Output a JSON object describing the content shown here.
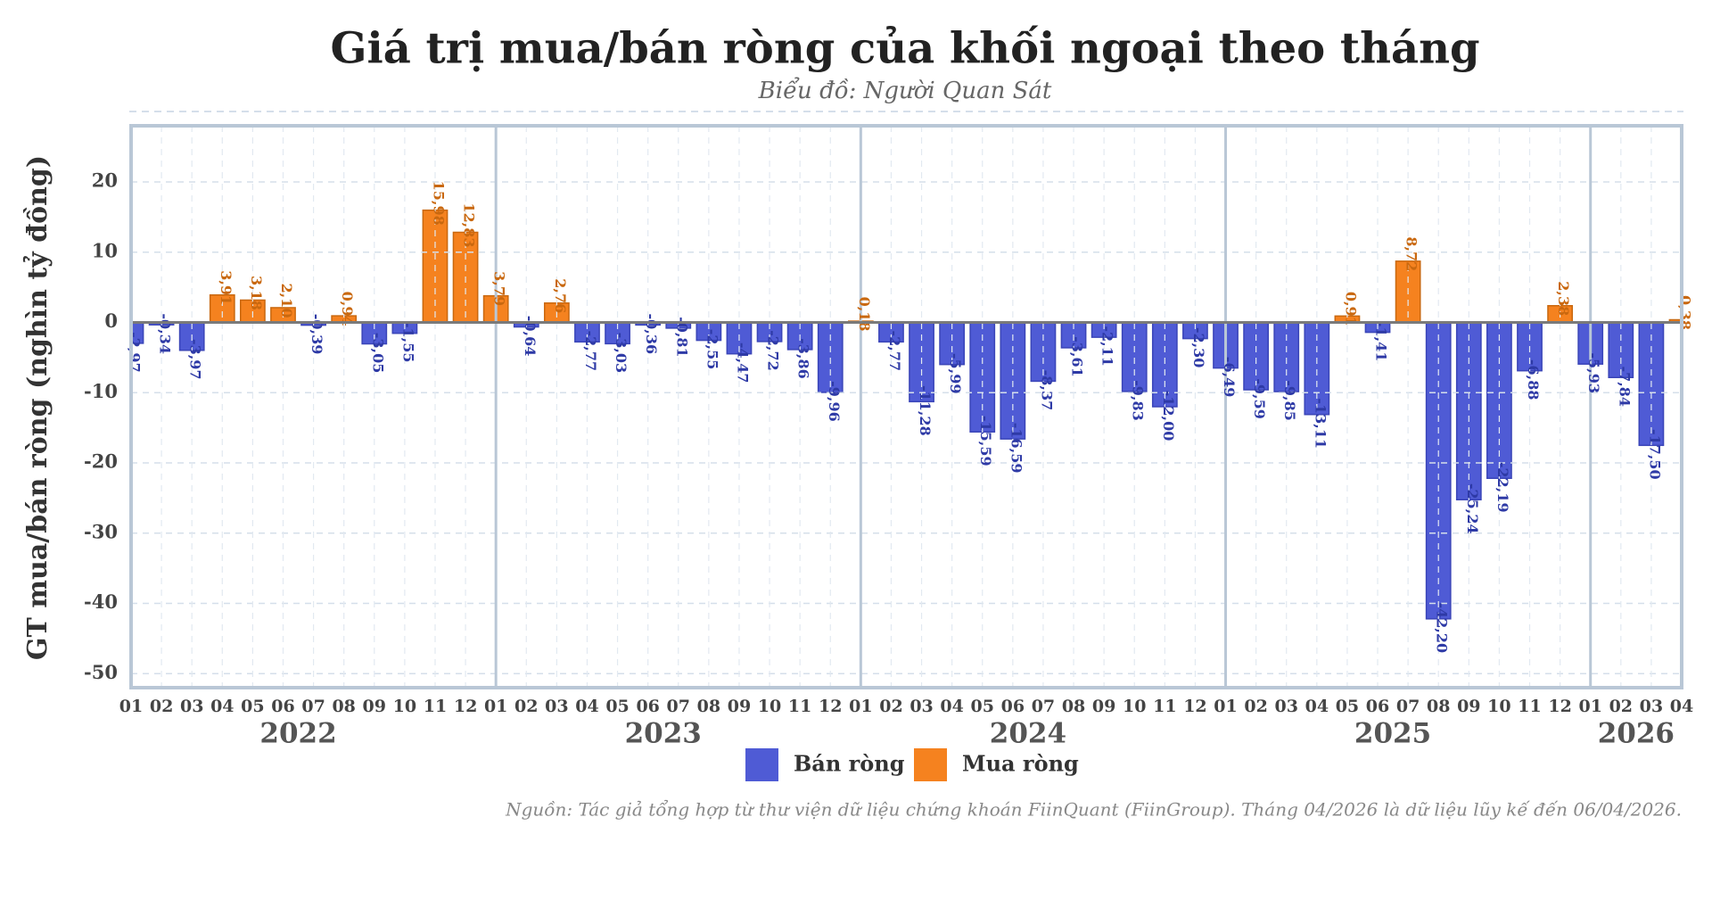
{
  "chart_data": {
    "type": "bar",
    "title": "Giá trị mua/bán ròng của khối ngoại theo tháng",
    "subtitle": "Biểu đồ: Người Quan Sát",
    "y_label": "GT mua/bán ròng (nghìn tỷ đồng)",
    "source": "Nguồn: Tác giả tổng hợp từ thư viện dữ liệu chứng khoán FiinQuant (FiinGroup). Tháng 04/2026 là dữ liệu lũy kế đến 06/04/2026.",
    "categories": [
      "01",
      "02",
      "03",
      "04",
      "05",
      "06",
      "07",
      "08",
      "09",
      "10",
      "11",
      "12",
      "01",
      "02",
      "03",
      "04",
      "05",
      "06",
      "07",
      "08",
      "09",
      "10",
      "11",
      "12",
      "01",
      "02",
      "03",
      "04",
      "05",
      "06",
      "07",
      "08",
      "09",
      "10",
      "11",
      "12",
      "01",
      "02",
      "03",
      "04",
      "05",
      "06",
      "07",
      "08",
      "09",
      "10",
      "11",
      "12",
      "01",
      "02",
      "03",
      "04"
    ],
    "years": [
      "2022",
      "2023",
      "2024",
      "2025",
      "2026"
    ],
    "series": [
      {
        "name": "Bán ròng",
        "color": "#4f5bd5",
        "values": [
          -2.97,
          -0.34,
          -3.97,
          null,
          null,
          null,
          -0.39,
          null,
          -3.05,
          -1.55,
          null,
          null,
          null,
          -0.64,
          null,
          -2.77,
          -3.03,
          -0.36,
          -0.81,
          -2.55,
          -4.47,
          -2.72,
          -3.86,
          -9.96,
          null,
          -2.77,
          -11.28,
          -5.99,
          -15.59,
          -16.59,
          -8.37,
          -3.61,
          -2.11,
          -9.83,
          -12,
          -2.3,
          -6.49,
          -9.59,
          -9.85,
          -13.11,
          null,
          -1.41,
          null,
          -42.2,
          -25.24,
          -22.19,
          -6.88,
          null,
          -5.93,
          -7.84,
          -17.5,
          null
        ],
        "value_labels": [
          "-2,97",
          "-0,34",
          "-3,97",
          null,
          null,
          null,
          "-0,39",
          null,
          "-3,05",
          "-1,55",
          null,
          null,
          null,
          "-0,64",
          null,
          "-2,77",
          "-3,03",
          "-0,36",
          "-0,81",
          "-2,55",
          "-4,47",
          "-2,72",
          "-3,86",
          "-9,96",
          null,
          "-2,77",
          "-11,28",
          "-5,99",
          "-15,59",
          "-16,59",
          "-8,37",
          "-3,61",
          "-2,11",
          "-9,83",
          "-12,00",
          "-2,30",
          "-6,49",
          "-9,59",
          "-9,85",
          "-13,11",
          null,
          "-1,41",
          null,
          "-42,20",
          "-25,24",
          "-22,19",
          "-6,88",
          null,
          "-5,93",
          "-7,84",
          "-17,50",
          null
        ]
      },
      {
        "name": "Mua ròng",
        "color": "#f5821f",
        "values": [
          null,
          null,
          null,
          3.91,
          3.18,
          2.1,
          null,
          0.94,
          null,
          null,
          15.98,
          12.83,
          3.79,
          null,
          2.76,
          null,
          null,
          null,
          null,
          null,
          null,
          null,
          null,
          null,
          0.18,
          null,
          null,
          null,
          null,
          null,
          null,
          null,
          null,
          null,
          null,
          null,
          null,
          null,
          null,
          null,
          0.91,
          null,
          8.72,
          null,
          null,
          null,
          null,
          2.38,
          null,
          null,
          null,
          0.38
        ],
        "value_labels": [
          null,
          null,
          null,
          "3,91",
          "3,18",
          "2,10",
          null,
          "0,94",
          null,
          null,
          "15,98",
          "12,83",
          "3,79",
          null,
          "2,76",
          null,
          null,
          null,
          null,
          null,
          null,
          null,
          null,
          null,
          "0,18",
          null,
          null,
          null,
          null,
          null,
          null,
          null,
          null,
          null,
          null,
          null,
          null,
          null,
          null,
          null,
          "0,91",
          null,
          "8,72",
          null,
          null,
          null,
          null,
          "2,38",
          null,
          null,
          null,
          "0,38"
        ]
      }
    ],
    "ylim": [
      -52,
      28
    ],
    "yticks": [
      -50,
      -40,
      -30,
      -20,
      -10,
      0,
      10,
      20
    ],
    "grid": true,
    "legend": "bottom"
  }
}
